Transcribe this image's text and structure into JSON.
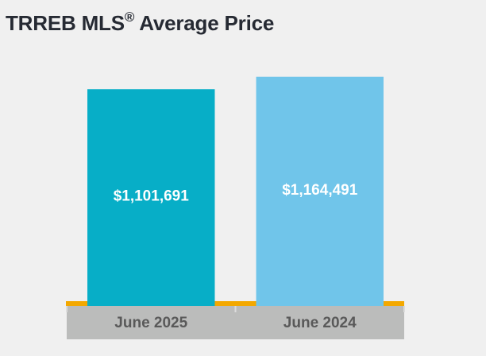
{
  "chart_data": {
    "type": "bar",
    "title": "TRREB MLS",
    "title_mark": "®",
    "title_suffix": " Average Price",
    "categories": [
      "June 2025",
      "June 2024"
    ],
    "values": [
      1101691,
      1164491
    ],
    "data_labels": [
      "$1,101,691",
      "$1,164,491"
    ],
    "xlabel": "",
    "ylabel": "",
    "ylim": [
      0,
      1240000
    ],
    "grid": false,
    "legend": "none",
    "colors": [
      "#07aec7",
      "#70c5ea"
    ],
    "axis_line_color": "#f3a800",
    "axis_band_color": "#bbbcbb"
  }
}
